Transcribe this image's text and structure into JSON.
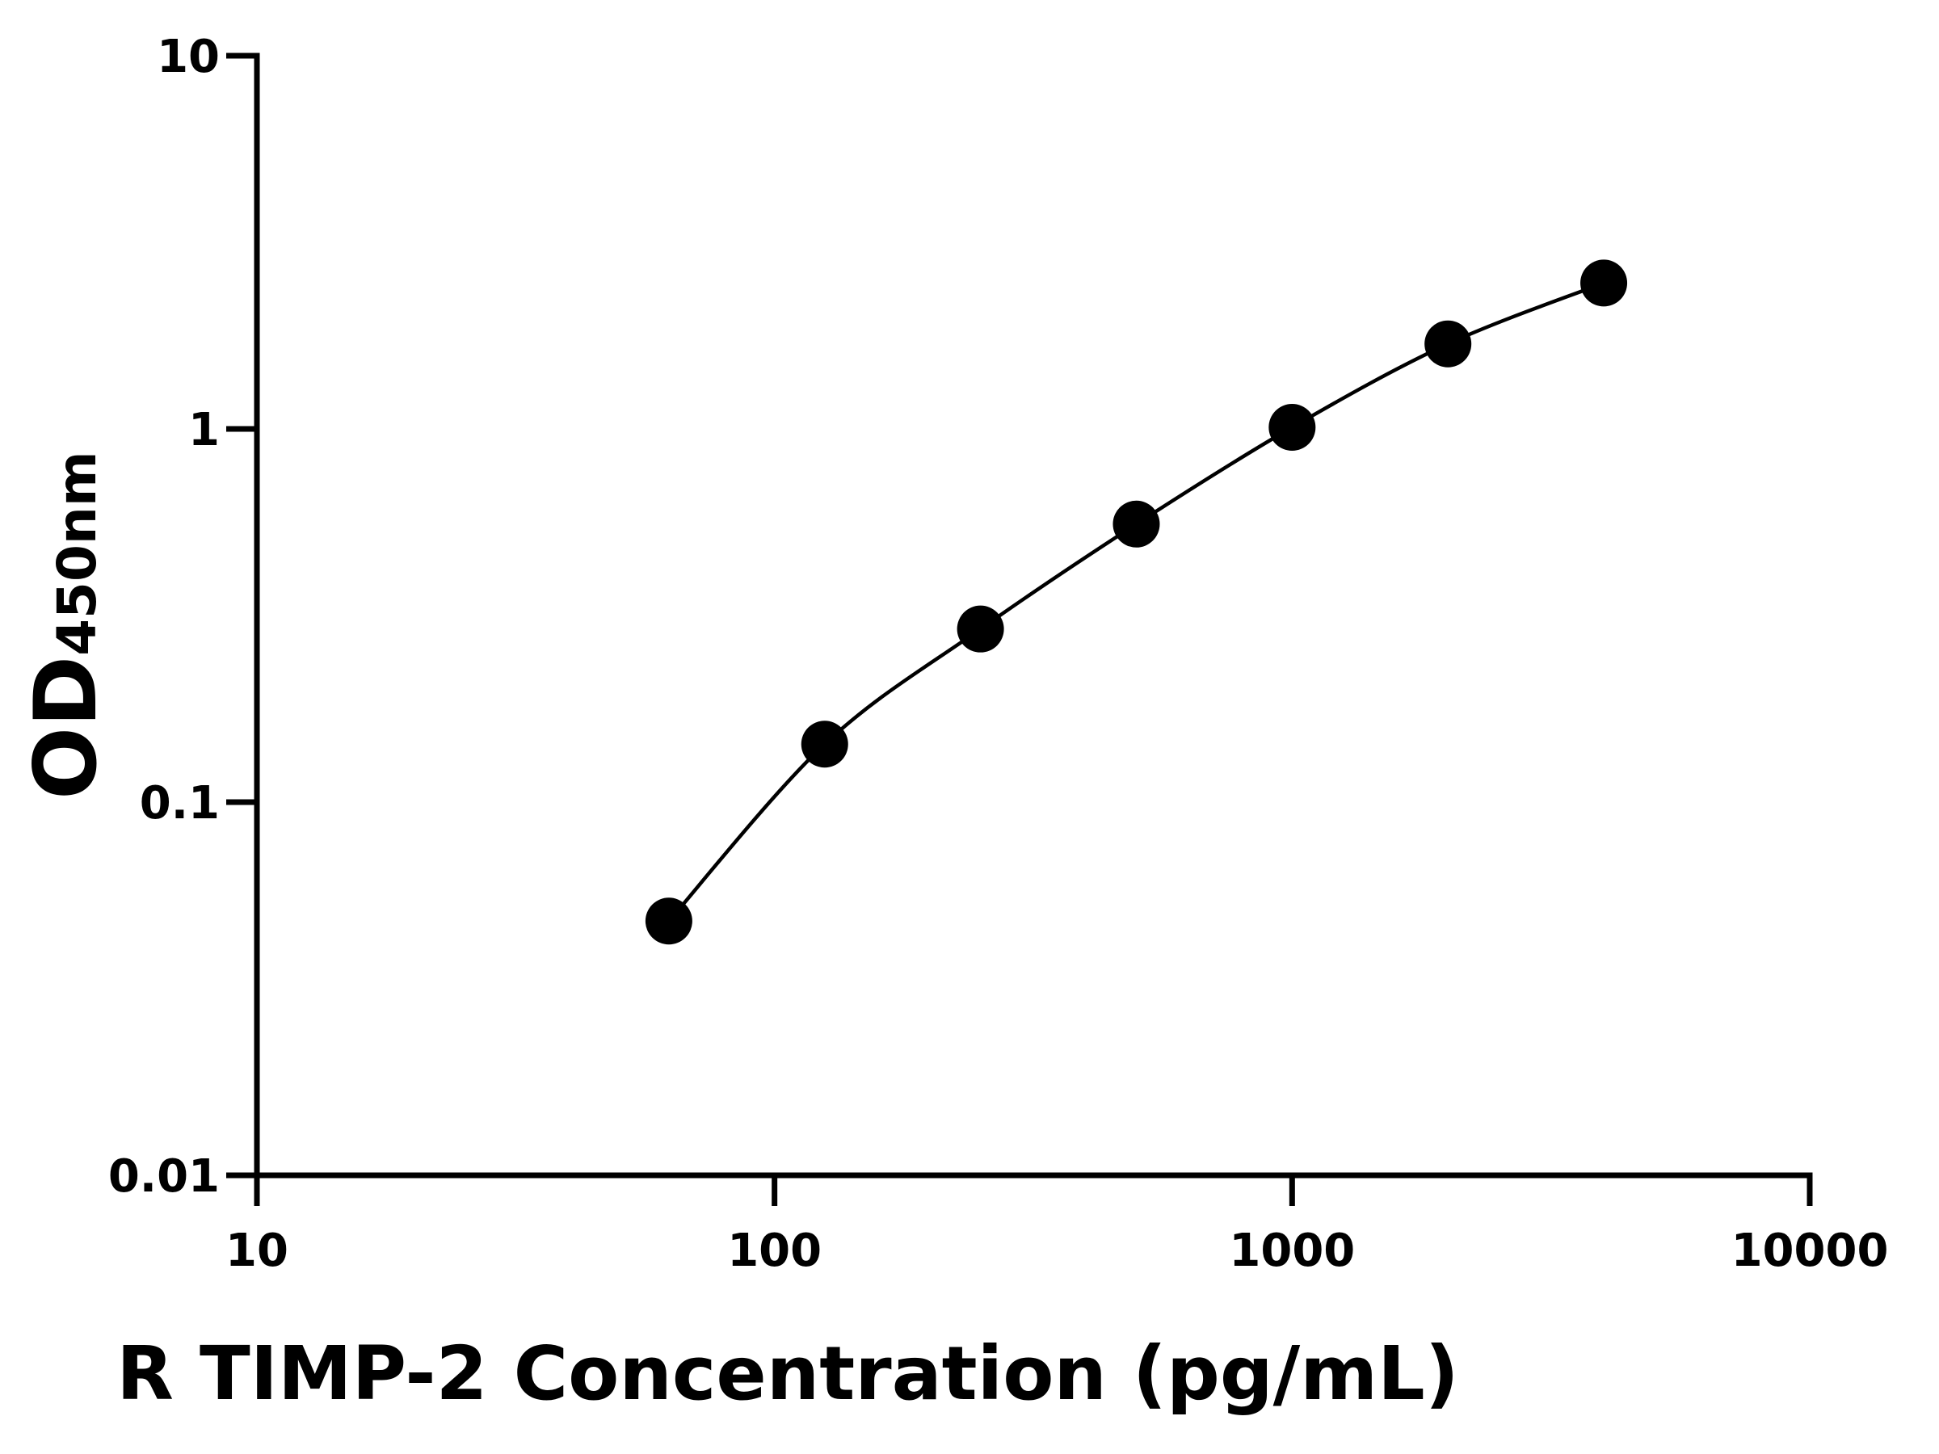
{
  "chart_data": {
    "type": "scatter",
    "xlabel": "R TIMP-2 Concentration (pg/mL)",
    "ylabel": "OD",
    "ylabel_sub": "450nm",
    "x": [
      62.5,
      125,
      250,
      500,
      1000,
      2000,
      4000
    ],
    "series": [
      {
        "color": "#000000",
        "values": [
          0.048,
          0.143,
          0.291,
          0.556,
          1.01,
          1.69,
          2.46
        ]
      }
    ],
    "xscale": "log",
    "yscale": "log",
    "xlim": [
      10,
      10000
    ],
    "ylim": [
      0.01,
      10
    ],
    "xticks": [
      10,
      100,
      1000,
      10000
    ],
    "yticks": [
      0.01,
      0.1,
      1,
      10
    ],
    "fit_curve": true
  }
}
